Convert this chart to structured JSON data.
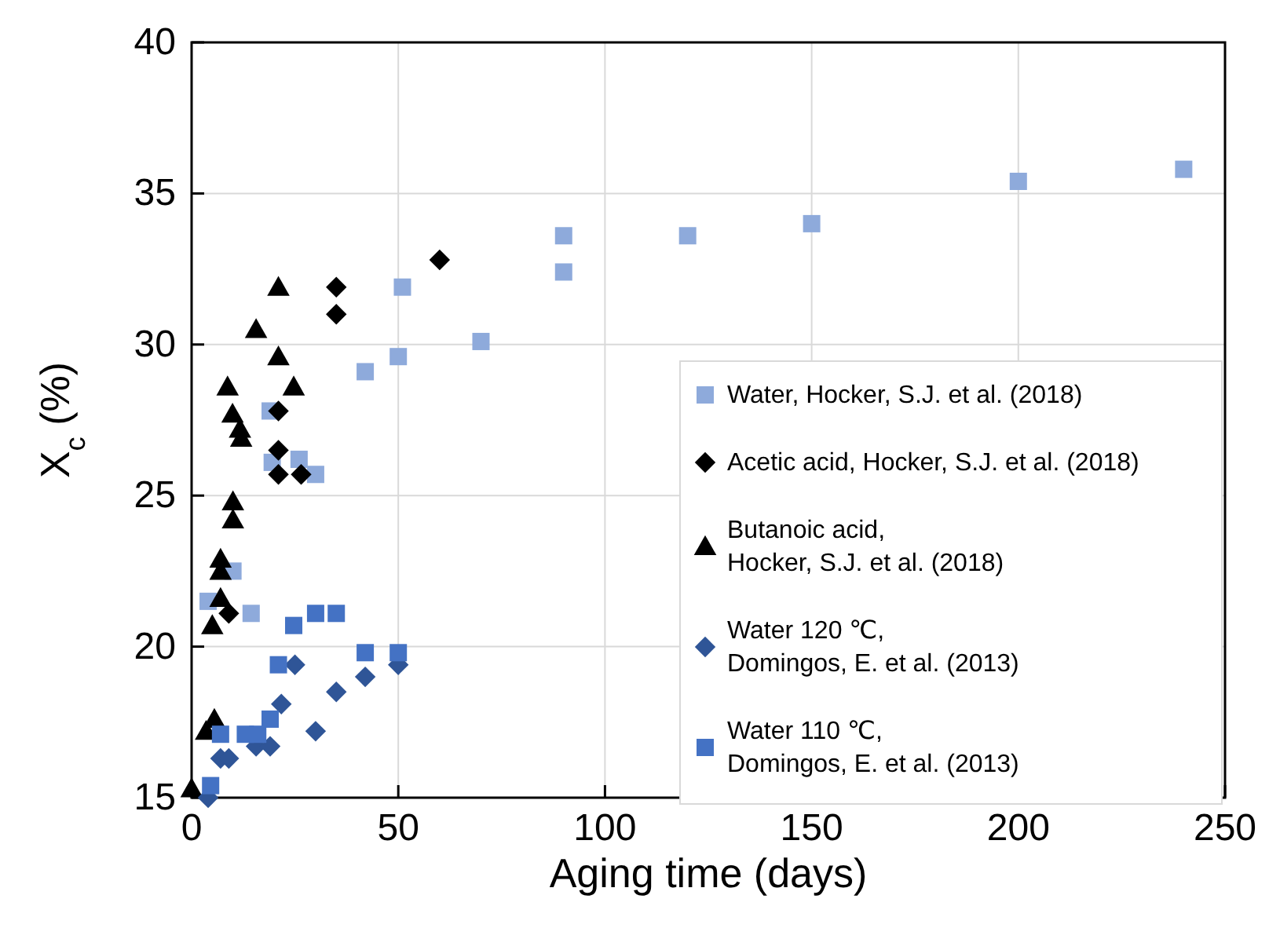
{
  "chart_data": {
    "type": "scatter",
    "xlabel": "Aging time (days)",
    "ylabel": "X$_{c}$ (%)",
    "xlim": [
      0,
      250
    ],
    "ylim": [
      15,
      40
    ],
    "xticks": [
      0,
      50,
      100,
      150,
      200,
      250
    ],
    "yticks": [
      15,
      20,
      25,
      30,
      35,
      40
    ],
    "grid": true,
    "legend": "right",
    "series": [
      {
        "name": "Water, Hocker, S.J. et al. (2018)",
        "color": "#8eaadb",
        "marker": "square",
        "x": [
          4,
          10,
          14.4,
          19,
          19.5,
          26,
          30,
          42,
          50,
          51,
          70,
          90,
          90,
          120,
          150,
          200,
          240
        ],
        "values": [
          21.5,
          22.5,
          21.1,
          27.8,
          26.1,
          26.2,
          25.7,
          29.1,
          29.6,
          31.9,
          30.1,
          33.6,
          32.4,
          33.6,
          34.0,
          35.4,
          35.8
        ]
      },
      {
        "name": "Acetic acid, Hocker, S.J. et al. (2018)",
        "color": "#000000",
        "marker": "diamond",
        "x": [
          9,
          21,
          21,
          21,
          26.5,
          35,
          35,
          60
        ],
        "values": [
          21.1,
          27.8,
          26.5,
          25.7,
          25.7,
          31.0,
          31.9,
          32.8
        ]
      },
      {
        "name": "Butanoic acid,\nHocker, S.J. et al. (2018)",
        "color": "#000000",
        "marker": "triangle",
        "x": [
          0,
          3.5,
          5.5,
          5,
          7,
          7,
          7,
          10,
          10,
          12,
          11.7,
          9.9,
          8.7,
          24.7,
          21,
          15.6,
          21
        ],
        "values": [
          15.3,
          17.2,
          17.6,
          20.7,
          21.6,
          22.5,
          22.9,
          24.2,
          24.8,
          26.9,
          27.2,
          27.7,
          28.6,
          28.6,
          29.6,
          30.5,
          31.9
        ]
      },
      {
        "name": "Water 120 ℃,\nDomingos, E. et al. (2013)",
        "color": "#2f5597",
        "marker": "diamond",
        "x": [
          4,
          7,
          9,
          15.6,
          19,
          21.7,
          25,
          30,
          35,
          42,
          50
        ],
        "values": [
          15.0,
          16.3,
          16.3,
          16.7,
          16.7,
          18.1,
          19.4,
          17.2,
          18.5,
          19.0,
          19.4
        ]
      },
      {
        "name": "Water 110 ℃,\nDomingos, E. et al. (2013)",
        "color": "#4472c4",
        "marker": "square",
        "x": [
          4.6,
          7,
          13,
          16,
          19,
          21,
          24.7,
          30,
          35,
          42,
          50
        ],
        "values": [
          15.4,
          17.1,
          17.1,
          17.1,
          17.6,
          19.4,
          20.7,
          21.1,
          21.1,
          19.8,
          19.8
        ]
      }
    ]
  }
}
